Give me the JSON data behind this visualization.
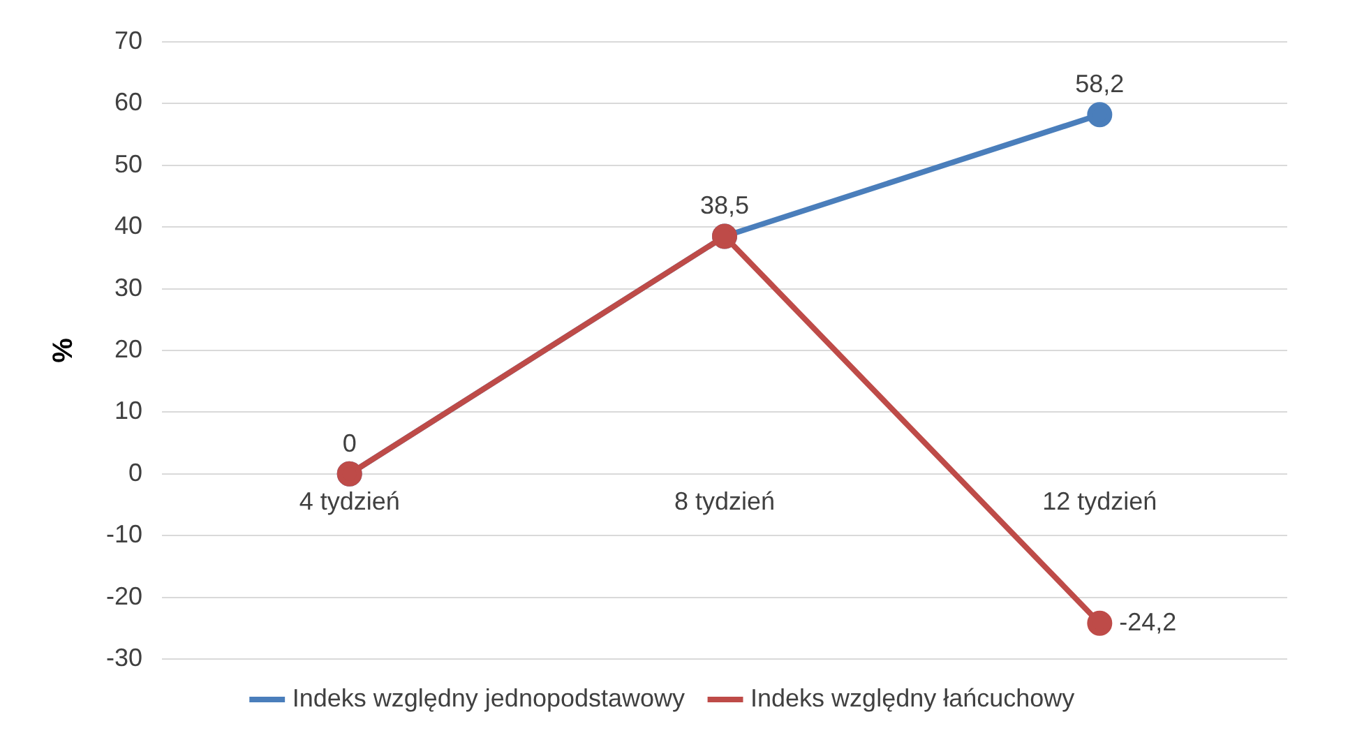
{
  "chart_data": {
    "type": "line",
    "ylabel": "%",
    "categories": [
      "4 tydzień",
      "8 tydzień",
      "12 tydzień"
    ],
    "series": [
      {
        "name": "Indeks względny jednopodstawowy",
        "color": "#4a7ebb",
        "values": [
          0,
          38.5,
          58.2
        ],
        "value_labels": [
          "0",
          "38,5",
          "58,2"
        ]
      },
      {
        "name": "Indeks względny łańcuchowy",
        "color": "#be4b48",
        "values": [
          0,
          38.5,
          -24.2
        ],
        "value_labels": [
          null,
          null,
          "-24,2"
        ]
      }
    ],
    "ylim": [
      -30,
      70
    ],
    "yticks": [
      -30,
      -20,
      -10,
      0,
      10,
      20,
      30,
      40,
      50,
      60,
      70
    ],
    "grid": "y",
    "legend": "bottom",
    "marker": "circle",
    "line_style": "solid"
  }
}
